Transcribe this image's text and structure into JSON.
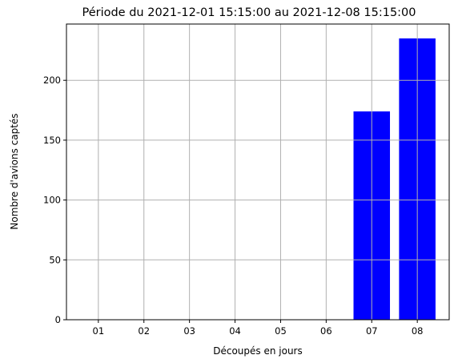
{
  "chart_data": {
    "type": "bar",
    "title": "Période du 2021-12-01 15:15:00 au 2021-12-08 15:15:00",
    "xlabel": "Découpés en jours",
    "ylabel": "Nombre d'avions captés",
    "categories": [
      "01",
      "02",
      "03",
      "04",
      "05",
      "06",
      "07",
      "08"
    ],
    "values": [
      0,
      0,
      0,
      0,
      0,
      0,
      174,
      235
    ],
    "ylim": [
      0,
      247
    ],
    "yticks": [
      0,
      50,
      100,
      150,
      200
    ],
    "grid": true,
    "bar_color": "#0000ff"
  }
}
